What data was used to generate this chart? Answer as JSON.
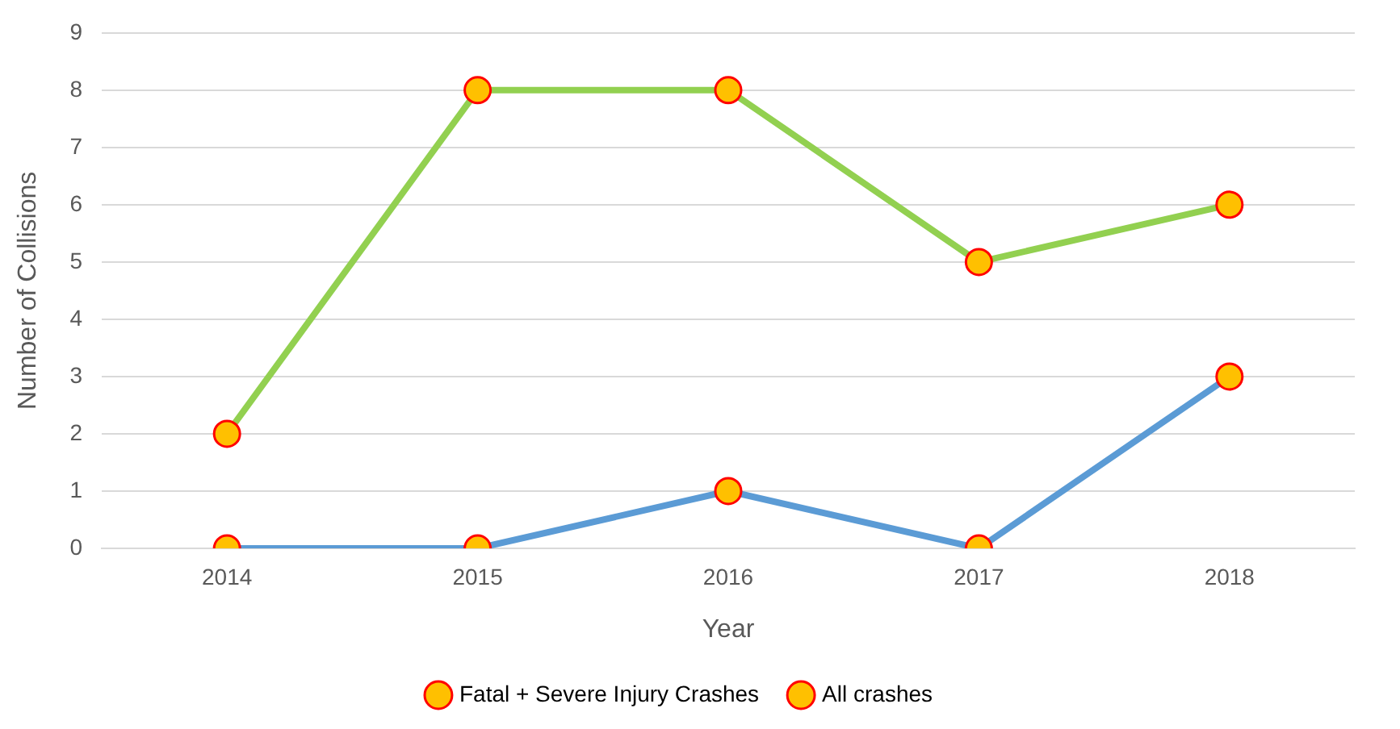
{
  "chart_data": {
    "type": "line",
    "xlabel": "Year",
    "ylabel": "Number of Collisions",
    "categories": [
      "2014",
      "2015",
      "2016",
      "2017",
      "2018"
    ],
    "series": [
      {
        "name": "Fatal + Severe Injury Crashes",
        "color": "#5b9bd5",
        "values": [
          0,
          0,
          1,
          0,
          3
        ]
      },
      {
        "name": "All crashes",
        "color": "#92d050",
        "values": [
          2,
          8,
          8,
          5,
          6
        ]
      }
    ],
    "ylim": [
      0,
      9
    ],
    "yticks": [
      0,
      1,
      2,
      3,
      4,
      5,
      6,
      7,
      8,
      9
    ],
    "grid": "y",
    "legend": "bottom",
    "marker": "circle",
    "line_style": "solid"
  }
}
